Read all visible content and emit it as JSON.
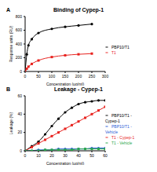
{
  "chart_data": [
    {
      "type": "line",
      "panel_label": "A",
      "title": "Binding of Cypep-1",
      "x_label": "Concentration (µg/ml)",
      "y_label": "Response units (RU)",
      "x": [
        0,
        6.25,
        12.5,
        25,
        50,
        100,
        150,
        200,
        250
      ],
      "xlim": [
        0,
        300
      ],
      "xticks": [
        0,
        50,
        100,
        150,
        200,
        250,
        300
      ],
      "ylim": [
        0,
        800
      ],
      "yticks": [
        0,
        200,
        400,
        600,
        800
      ],
      "legend": "right",
      "series": [
        {
          "name": "PBP10/T1",
          "color": "#000000",
          "marker": "circle",
          "line_style": "solid",
          "values": [
            0,
            250,
            380,
            470,
            560,
            620,
            650,
            670,
            690
          ]
        },
        {
          "name": "T1",
          "color": "#e8231f",
          "marker": "square",
          "line_style": "solid",
          "values": [
            0,
            40,
            70,
            110,
            160,
            210,
            235,
            250,
            260
          ]
        }
      ]
    },
    {
      "type": "line",
      "panel_label": "B",
      "title": "Leakage - Cypep-1",
      "x_label": "Concentration (µg/ml)",
      "y_label": "Leakage (%)",
      "x": [
        0,
        5,
        10,
        15,
        20,
        25,
        30,
        35,
        40,
        45,
        50,
        55,
        60
      ],
      "xlim": [
        0,
        60
      ],
      "xticks": [
        0,
        10,
        20,
        30,
        40,
        50,
        60
      ],
      "ylim": [
        0,
        60
      ],
      "yticks": [
        0,
        20,
        40,
        60
      ],
      "legend": "right",
      "series": [
        {
          "name": "PBP10/T1 - Cypep-1",
          "color": "#000000",
          "marker": "circle",
          "line_style": "solid",
          "values": [
            0,
            5,
            10,
            18,
            27,
            35,
            42,
            47,
            51,
            53,
            54,
            55,
            55
          ]
        },
        {
          "name": "T1 - Cypep-1",
          "color": "#e8231f",
          "marker": "square",
          "line_style": "solid",
          "values": [
            0,
            4,
            8,
            12,
            16,
            20,
            24,
            28,
            32,
            36,
            40,
            44,
            48
          ]
        },
        {
          "name": "PBP10/T1 - Vehicle",
          "color": "#2a5cd6",
          "marker": "circle",
          "line_style": "solid",
          "values": [
            0,
            0,
            1,
            1,
            1,
            2,
            2,
            2,
            2,
            2,
            3,
            3,
            3
          ]
        },
        {
          "name": "T1 - Vehicle",
          "color": "#2aa84a",
          "marker": "square",
          "line_style": "solid",
          "values": [
            0,
            0,
            0,
            1,
            1,
            1,
            1,
            1,
            2,
            2,
            2,
            2,
            2
          ]
        }
      ]
    }
  ]
}
